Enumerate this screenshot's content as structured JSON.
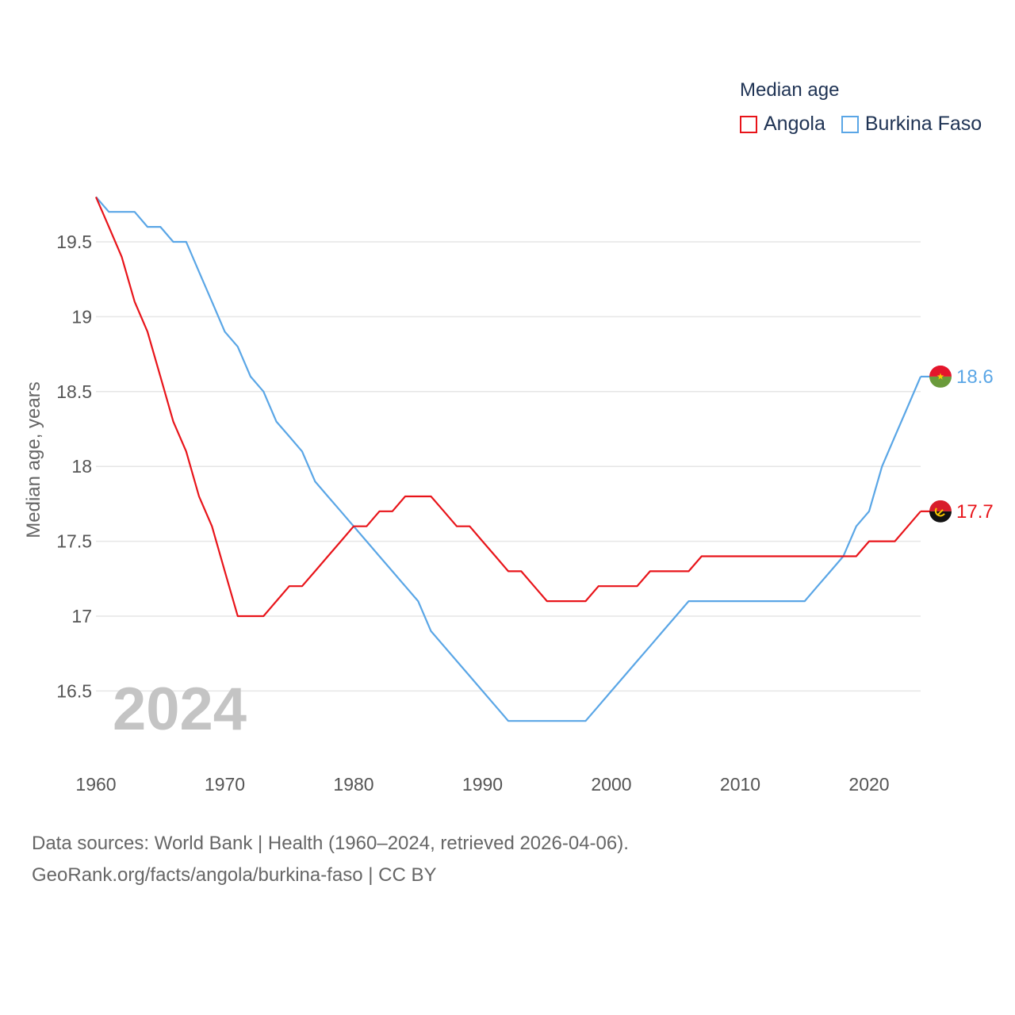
{
  "legend": {
    "title": "Median age",
    "items": [
      {
        "label": "Angola",
        "color": "#e8141a"
      },
      {
        "label": "Burkina Faso",
        "color": "#5aa6e6"
      }
    ]
  },
  "year_watermark": "2024",
  "source": {
    "line1": "Data sources: World Bank | Health (1960–2024, retrieved 2026-04-06).",
    "line2": "GeoRank.org/facts/angola/burkina-faso | CC BY"
  },
  "chart_data": {
    "type": "line",
    "title": "Median age",
    "xlabel": "",
    "ylabel": "Median age, years",
    "xlim": [
      1960,
      2024
    ],
    "ylim": [
      16.1,
      19.8
    ],
    "x_ticks": [
      1960,
      1970,
      1980,
      1990,
      2000,
      2010,
      2020
    ],
    "y_ticks": [
      16.5,
      17,
      17.5,
      18,
      18.5,
      19,
      19.5
    ],
    "y_tick_labels": [
      "16.5",
      "17",
      "17.5",
      "18",
      "18.5",
      "19",
      "19.5"
    ],
    "grid": true,
    "legend_position": "top-right",
    "x": [
      1960,
      1961,
      1962,
      1963,
      1964,
      1965,
      1966,
      1967,
      1968,
      1969,
      1970,
      1971,
      1972,
      1973,
      1974,
      1975,
      1976,
      1977,
      1978,
      1979,
      1980,
      1981,
      1982,
      1983,
      1984,
      1985,
      1986,
      1987,
      1988,
      1989,
      1990,
      1991,
      1992,
      1993,
      1994,
      1995,
      1996,
      1997,
      1998,
      1999,
      2000,
      2001,
      2002,
      2003,
      2004,
      2005,
      2006,
      2007,
      2008,
      2009,
      2010,
      2011,
      2012,
      2013,
      2014,
      2015,
      2016,
      2017,
      2018,
      2019,
      2020,
      2021,
      2022,
      2023,
      2024
    ],
    "series": [
      {
        "name": "Angola",
        "color": "#e8141a",
        "end_label": "17.7",
        "values": [
          19.8,
          19.6,
          19.4,
          19.1,
          18.9,
          18.6,
          18.3,
          18.1,
          17.8,
          17.6,
          17.3,
          17.0,
          17.0,
          17.0,
          17.1,
          17.2,
          17.2,
          17.3,
          17.4,
          17.5,
          17.6,
          17.6,
          17.7,
          17.7,
          17.8,
          17.8,
          17.8,
          17.7,
          17.6,
          17.6,
          17.5,
          17.4,
          17.3,
          17.3,
          17.2,
          17.1,
          17.1,
          17.1,
          17.1,
          17.2,
          17.2,
          17.2,
          17.2,
          17.3,
          17.3,
          17.3,
          17.3,
          17.4,
          17.4,
          17.4,
          17.4,
          17.4,
          17.4,
          17.4,
          17.4,
          17.4,
          17.4,
          17.4,
          17.4,
          17.4,
          17.5,
          17.5,
          17.5,
          17.6,
          17.7
        ]
      },
      {
        "name": "Burkina Faso",
        "color": "#5aa6e6",
        "end_label": "18.6",
        "values": [
          19.8,
          19.7,
          19.7,
          19.7,
          19.6,
          19.6,
          19.5,
          19.5,
          19.3,
          19.1,
          18.9,
          18.8,
          18.6,
          18.5,
          18.3,
          18.2,
          18.1,
          17.9,
          17.8,
          17.7,
          17.6,
          17.5,
          17.4,
          17.3,
          17.2,
          17.1,
          16.9,
          16.8,
          16.7,
          16.6,
          16.5,
          16.4,
          16.3,
          16.3,
          16.3,
          16.3,
          16.3,
          16.3,
          16.3,
          16.4,
          16.5,
          16.6,
          16.7,
          16.8,
          16.9,
          17.0,
          17.1,
          17.1,
          17.1,
          17.1,
          17.1,
          17.1,
          17.1,
          17.1,
          17.1,
          17.1,
          17.2,
          17.3,
          17.4,
          17.6,
          17.7,
          18.0,
          18.2,
          18.4,
          18.6
        ]
      }
    ]
  }
}
